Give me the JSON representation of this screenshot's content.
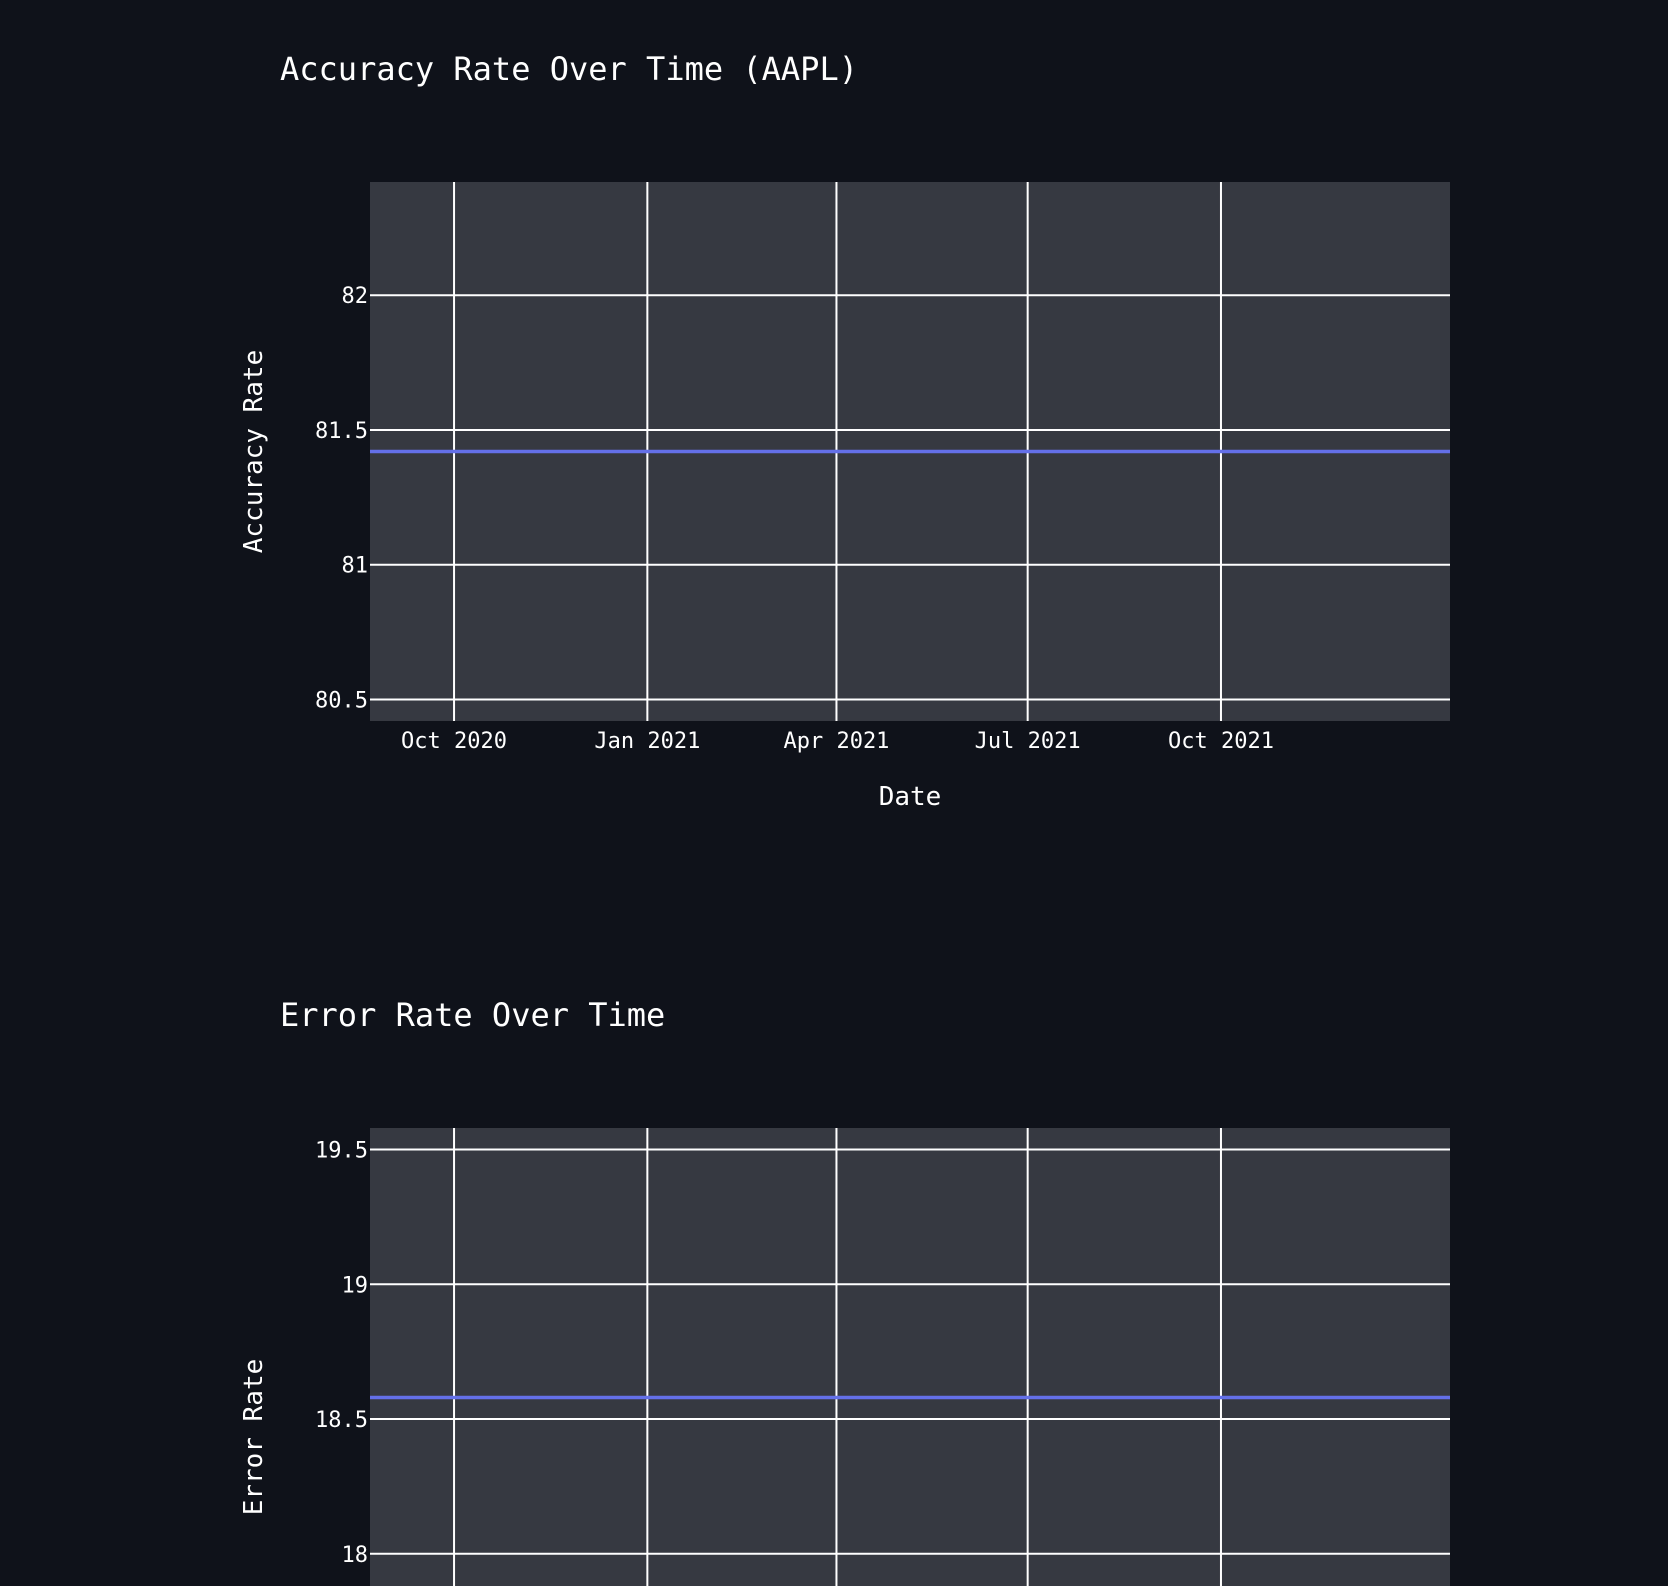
{
  "page": {
    "background_color": "#0f121a",
    "plot_background_color": "#363941",
    "grid_color": "#ffffff",
    "text_color": "#ffffff",
    "line_color": "#6470e8"
  },
  "chart_data": [
    {
      "type": "line",
      "title": "Accuracy Rate Over Time (AAPL)",
      "xlabel": "Date",
      "ylabel": "Accuracy Rate",
      "xlim": [
        "2020-08-22",
        "2022-01-18"
      ],
      "ylim": [
        80.42,
        82.42
      ],
      "x_ticks": [
        "2020-10-01",
        "2021-01-01",
        "2021-04-01",
        "2021-07-01",
        "2021-10-01"
      ],
      "x_tick_labels": [
        "Oct 2020",
        "Jan 2021",
        "Apr 2021",
        "Jul 2021",
        "Oct 2021"
      ],
      "y_ticks": [
        80.5,
        81,
        81.5,
        82
      ],
      "y_tick_labels": [
        "80.5",
        "81",
        "81.5",
        "82"
      ],
      "grid": true,
      "series": [
        {
          "x": [
            "2020-08-22",
            "2022-01-18"
          ],
          "y": [
            81.42,
            81.42
          ]
        }
      ]
    },
    {
      "type": "line",
      "title": "Error Rate Over Time",
      "xlabel": "",
      "ylabel": "Error Rate",
      "xlim": [
        "2020-08-22",
        "2022-01-18"
      ],
      "ylim": [
        17.58,
        19.58
      ],
      "x_ticks": [
        "2020-10-01",
        "2021-01-01",
        "2021-04-01",
        "2021-07-01",
        "2021-10-01"
      ],
      "x_tick_labels": [],
      "y_ticks": [
        18,
        18.5,
        19,
        19.5
      ],
      "y_tick_labels": [
        "18",
        "18.5",
        "19",
        "19.5"
      ],
      "grid": true,
      "series": [
        {
          "x": [
            "2020-08-22",
            "2022-01-18"
          ],
          "y": [
            18.58,
            18.58
          ]
        }
      ]
    }
  ]
}
